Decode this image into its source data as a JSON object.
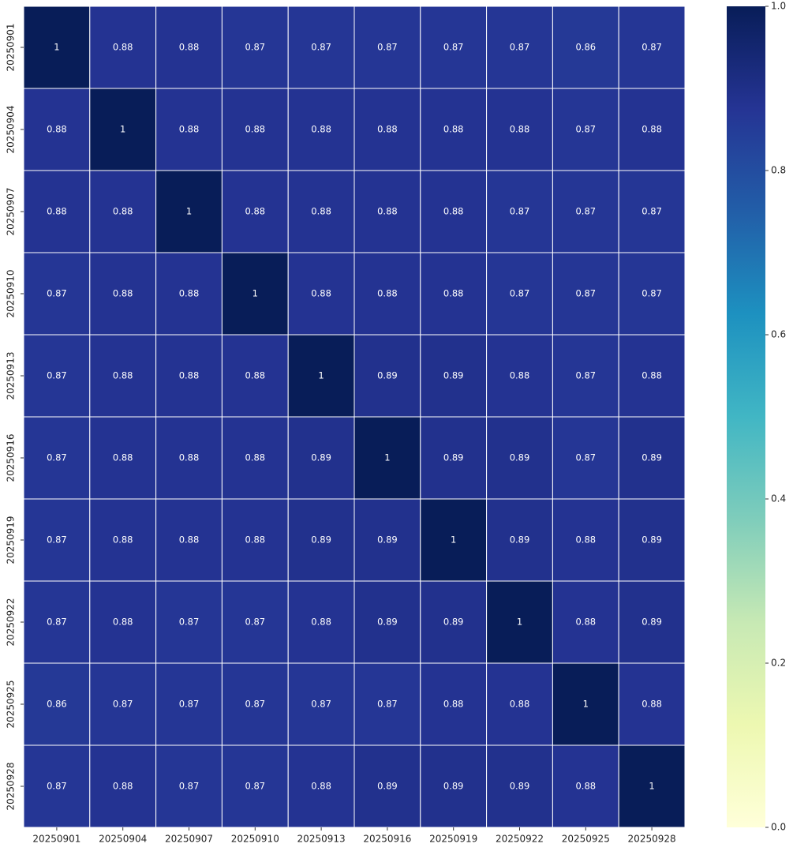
{
  "chart_data": {
    "type": "heatmap",
    "x": [
      "20250901",
      "20250904",
      "20250907",
      "20250910",
      "20250913",
      "20250916",
      "20250919",
      "20250922",
      "20250925",
      "20250928"
    ],
    "y": [
      "20250901",
      "20250904",
      "20250907",
      "20250910",
      "20250913",
      "20250916",
      "20250919",
      "20250922",
      "20250925",
      "20250928"
    ],
    "values": [
      [
        1,
        0.88,
        0.88,
        0.87,
        0.87,
        0.87,
        0.87,
        0.87,
        0.86,
        0.87
      ],
      [
        0.88,
        1,
        0.88,
        0.88,
        0.88,
        0.88,
        0.88,
        0.88,
        0.87,
        0.88
      ],
      [
        0.88,
        0.88,
        1,
        0.88,
        0.88,
        0.88,
        0.88,
        0.87,
        0.87,
        0.87
      ],
      [
        0.87,
        0.88,
        0.88,
        1,
        0.88,
        0.88,
        0.88,
        0.87,
        0.87,
        0.87
      ],
      [
        0.87,
        0.88,
        0.88,
        0.88,
        1,
        0.89,
        0.89,
        0.88,
        0.87,
        0.88
      ],
      [
        0.87,
        0.88,
        0.88,
        0.88,
        0.89,
        1,
        0.89,
        0.89,
        0.87,
        0.89
      ],
      [
        0.87,
        0.88,
        0.88,
        0.88,
        0.89,
        0.89,
        1,
        0.89,
        0.88,
        0.89
      ],
      [
        0.87,
        0.88,
        0.87,
        0.87,
        0.88,
        0.89,
        0.89,
        1,
        0.88,
        0.89
      ],
      [
        0.86,
        0.87,
        0.87,
        0.87,
        0.87,
        0.87,
        0.88,
        0.88,
        1,
        0.88
      ],
      [
        0.87,
        0.88,
        0.87,
        0.87,
        0.88,
        0.89,
        0.89,
        0.89,
        0.88,
        1
      ]
    ],
    "colorscale": [
      "#ffffd9",
      "#edf8b1",
      "#c7e9b4",
      "#7fcdbb",
      "#41b6c4",
      "#1d91c0",
      "#225ea8",
      "#253494",
      "#081d58"
    ],
    "clim": [
      0,
      1
    ],
    "cticks": [
      {
        "value": 0,
        "label": "0.0"
      },
      0.2,
      0.4,
      0.6,
      0.8,
      {
        "value": 1,
        "label": "1.0"
      }
    ]
  }
}
